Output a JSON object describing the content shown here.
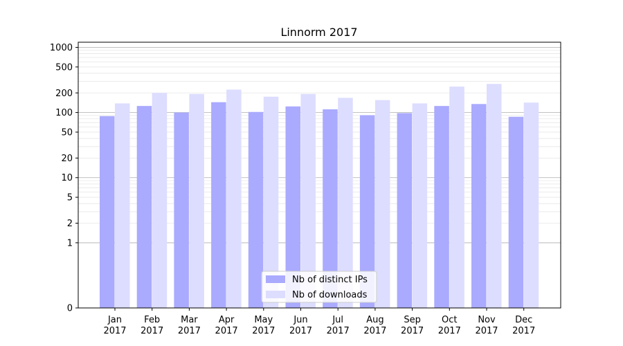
{
  "chart_data": {
    "type": "bar",
    "title": "Linnorm 2017",
    "xlabel": "",
    "ylabel": "",
    "y_scale": "symlog",
    "ylim": [
      0,
      1200
    ],
    "y_ticks": [
      0,
      1,
      2,
      5,
      10,
      20,
      50,
      100,
      200,
      500,
      1000
    ],
    "y_tick_labels": [
      "0",
      "1",
      "2",
      "5",
      "10",
      "20",
      "50",
      "100",
      "200",
      "500",
      "1000"
    ],
    "categories": [
      [
        "Jan",
        "2017"
      ],
      [
        "Feb",
        "2017"
      ],
      [
        "Mar",
        "2017"
      ],
      [
        "Apr",
        "2017"
      ],
      [
        "May",
        "2017"
      ],
      [
        "Jun",
        "2017"
      ],
      [
        "Jul",
        "2017"
      ],
      [
        "Aug",
        "2017"
      ],
      [
        "Sep",
        "2017"
      ],
      [
        "Oct",
        "2017"
      ],
      [
        "Nov",
        "2017"
      ],
      [
        "Dec",
        "2017"
      ]
    ],
    "series": [
      {
        "name": "Nb of distinct IPs",
        "color": "#aaaaff",
        "values": [
          88,
          126,
          100,
          144,
          102,
          124,
          112,
          91,
          98,
          126,
          135,
          86
        ]
      },
      {
        "name": "Nb of downloads",
        "color": "#ddddff",
        "values": [
          138,
          200,
          193,
          225,
          175,
          193,
          168,
          155,
          138,
          250,
          275,
          142
        ]
      }
    ],
    "grid": true,
    "legend_position": "lower-center"
  }
}
